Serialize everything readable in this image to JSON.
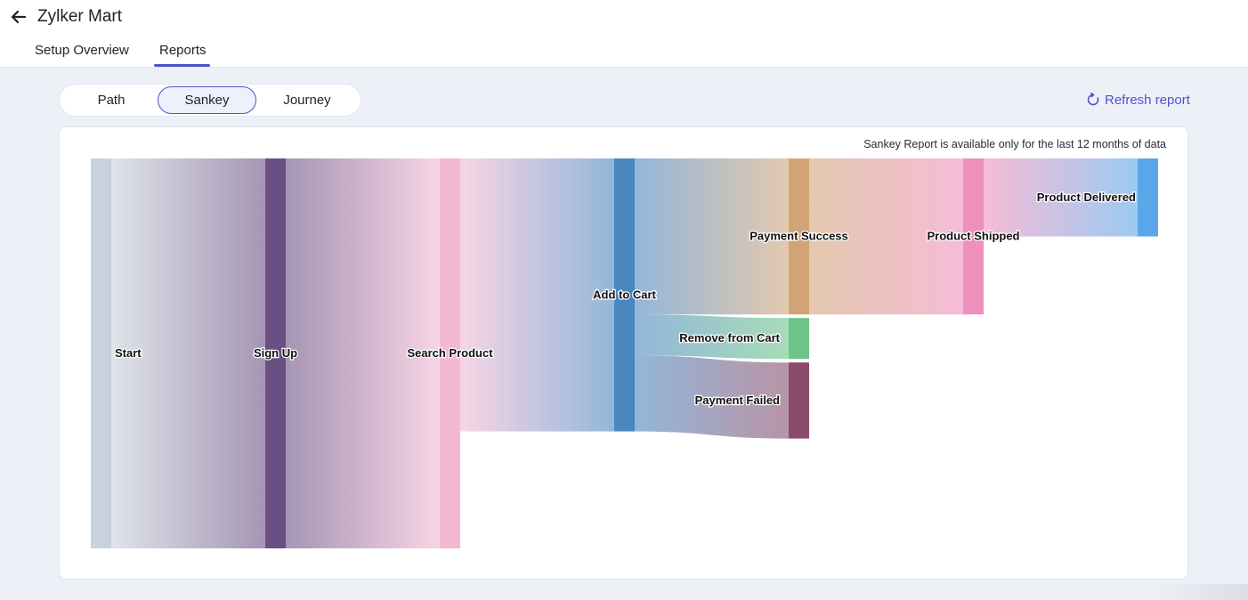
{
  "header": {
    "title": "Zylker Mart",
    "tabs": [
      {
        "label": "Setup Overview",
        "active": false
      },
      {
        "label": "Reports",
        "active": true
      }
    ]
  },
  "toolbar": {
    "view_options": [
      {
        "label": "Path",
        "selected": false
      },
      {
        "label": "Sankey",
        "selected": true
      },
      {
        "label": "Journey",
        "selected": false
      }
    ],
    "refresh_label": "Refresh report",
    "refresh_icon": "refresh-icon"
  },
  "icons": {
    "back": "arrow-left-icon"
  },
  "colors": {
    "accent": "#4a55c9",
    "page_bg": "#eef0f8"
  },
  "report": {
    "note": "Sankey Report is available only for the last 12 months of data"
  },
  "chart_data": {
    "type": "sankey",
    "nodes": [
      {
        "id": "start",
        "label": "Start",
        "stage": 0,
        "color": "#c9d1dc"
      },
      {
        "id": "signup",
        "label": "Sign Up",
        "stage": 1,
        "color": "#6a4f82"
      },
      {
        "id": "search",
        "label": "Search Product",
        "stage": 2,
        "color": "#f3b8d4"
      },
      {
        "id": "cart",
        "label": "Add to Cart",
        "stage": 3,
        "color": "#4a86c0"
      },
      {
        "id": "success",
        "label": "Payment Success",
        "stage": 4,
        "color": "#d1a478"
      },
      {
        "id": "remove",
        "label": "Remove from Cart",
        "stage": 4,
        "color": "#6cc489"
      },
      {
        "id": "failed",
        "label": "Payment Failed",
        "stage": 4,
        "color": "#8a4c6a"
      },
      {
        "id": "shipped",
        "label": "Product Shipped",
        "stage": 5,
        "color": "#ef8fbd"
      },
      {
        "id": "delivered",
        "label": "Product Delivered",
        "stage": 6,
        "color": "#59a7e8"
      }
    ],
    "links": [
      {
        "source": "start",
        "target": "signup",
        "value": 100
      },
      {
        "source": "signup",
        "target": "search",
        "value": 100
      },
      {
        "source": "search",
        "target": "cart",
        "value": 70
      },
      {
        "source": "cart",
        "target": "success",
        "value": 40
      },
      {
        "source": "cart",
        "target": "remove",
        "value": 10.5
      },
      {
        "source": "cart",
        "target": "failed",
        "value": 19.5
      },
      {
        "source": "success",
        "target": "shipped",
        "value": 40
      },
      {
        "source": "shipped",
        "target": "delivered",
        "value": 20
      }
    ]
  }
}
